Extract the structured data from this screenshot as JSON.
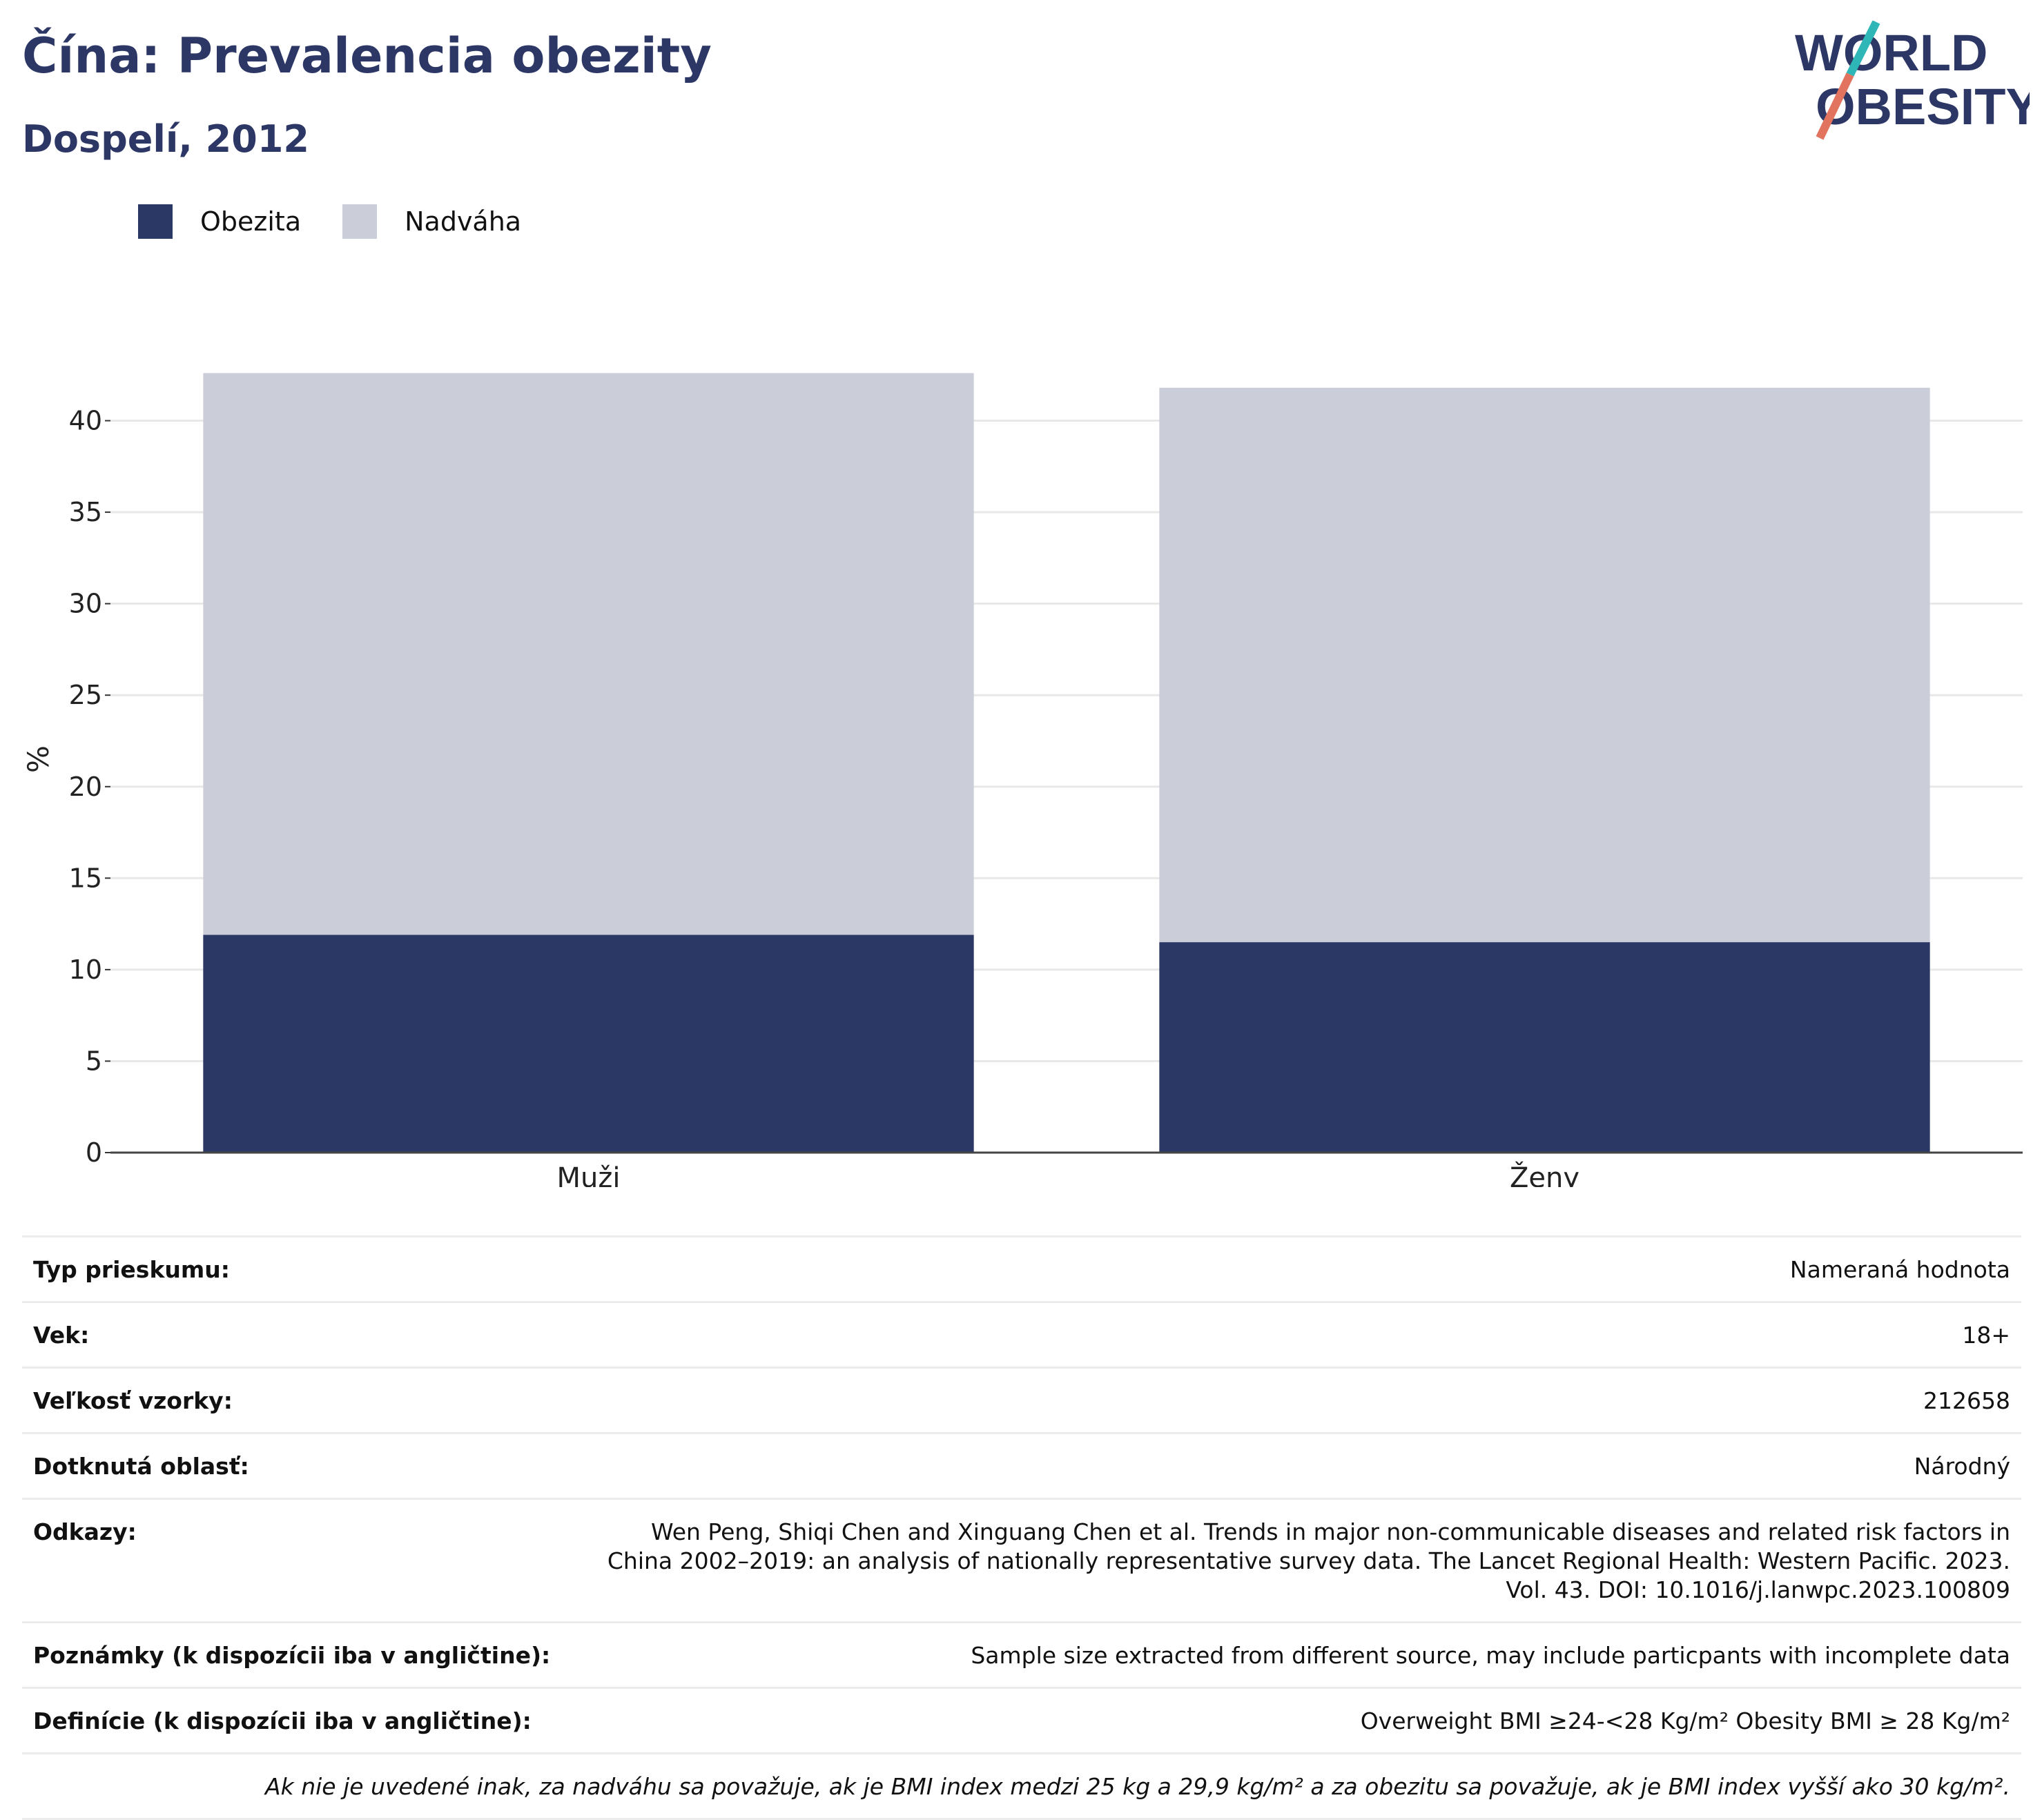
{
  "header": {
    "title": "Čína: Prevalencia obezity",
    "subtitle": "Dospelí, 2012",
    "logo_line1": "WORLD",
    "logo_line2": "OBESITY"
  },
  "legend": {
    "items": [
      {
        "label": "Obezita",
        "color": "#2b3764"
      },
      {
        "label": "Nadváha",
        "color": "#cbcdd8"
      }
    ]
  },
  "chart_data": {
    "type": "bar",
    "stacked": true,
    "categories": [
      "Muži",
      "Ženy"
    ],
    "series": [
      {
        "name": "Obezita",
        "color": "#2b3764",
        "values": [
          11.9,
          11.5
        ]
      },
      {
        "name": "Nadváha",
        "color": "#cbcdd8",
        "values": [
          30.7,
          30.3
        ]
      }
    ],
    "ylabel": "%",
    "ylim": [
      0,
      43
    ],
    "yticks": [
      0,
      5,
      10,
      15,
      20,
      25,
      30,
      35,
      40
    ],
    "grid": true,
    "legend_position": "top-left"
  },
  "info": {
    "rows": [
      {
        "label": "Typ prieskumu:",
        "value": "Nameraná hodnota"
      },
      {
        "label": "Vek:",
        "value": "18+"
      },
      {
        "label": "Veľkosť vzorky:",
        "value": "212658"
      },
      {
        "label": "Dotknutá oblasť:",
        "value": "Národný"
      },
      {
        "label": "Odkazy:",
        "value": "Wen Peng, Shiqi Chen and Xinguang Chen et al. Trends in major non-communicable diseases and related risk factors in China 2002–2019: an analysis of nationally representative survey data. The Lancet Regional Health: Western Pacific. 2023. Vol. 43. DOI: 10.1016/j.lanwpc.2023.100809"
      },
      {
        "label": "Poznámky (k dispozícii iba v angličtine):",
        "value": "Sample size extracted from different source, may include particpants with incomplete data"
      },
      {
        "label": "Definície (k dispozícii iba v angličtine):",
        "value": "Overweight BMI ≥24-<28 Kg/m² Obesity BMI ≥ 28 Kg/m²"
      }
    ],
    "footnote": "Ak nie je uvedené inak, za nadváhu sa považuje, ak je BMI index medzi 25 kg a 29,9 kg/m² a za obezitu sa považuje, ak je BMI index vyšší ako 30 kg/m²."
  }
}
